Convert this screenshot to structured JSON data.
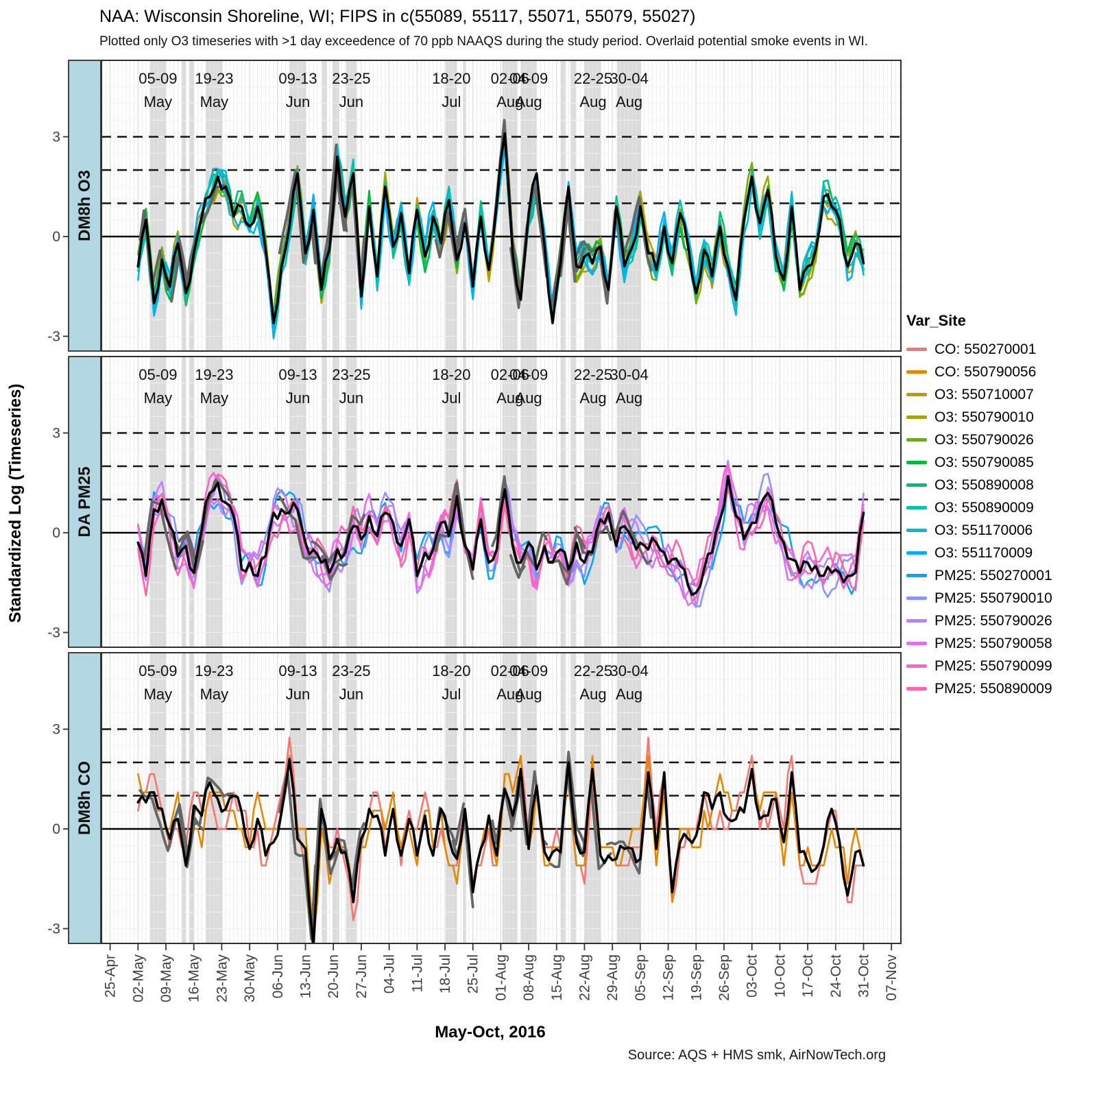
{
  "title": "NAA: Wisconsin Shoreline, WI; FIPS in c(55089, 55117, 55071, 55079, 55027)",
  "subtitle": "Plotted only O3 timeseries with >1 day exceedence of 70 ppb NAAQS during the study period. Overlaid potential smoke events in WI.",
  "caption": "Source: AQS + HMS smk, AirNowTech.org",
  "x_axis": {
    "title": "May-Oct, 2016",
    "ticks": [
      {
        "label": "25-Apr",
        "day": -7
      },
      {
        "label": "02-May",
        "day": 0
      },
      {
        "label": "09-May",
        "day": 7
      },
      {
        "label": "16-May",
        "day": 14
      },
      {
        "label": "23-May",
        "day": 21
      },
      {
        "label": "30-May",
        "day": 28
      },
      {
        "label": "06-Jun",
        "day": 35
      },
      {
        "label": "13-Jun",
        "day": 42
      },
      {
        "label": "20-Jun",
        "day": 49
      },
      {
        "label": "27-Jun",
        "day": 56
      },
      {
        "label": "04-Jul",
        "day": 63
      },
      {
        "label": "11-Jul",
        "day": 70
      },
      {
        "label": "18-Jul",
        "day": 77
      },
      {
        "label": "25-Jul",
        "day": 84
      },
      {
        "label": "01-Aug",
        "day": 91
      },
      {
        "label": "08-Aug",
        "day": 98
      },
      {
        "label": "15-Aug",
        "day": 105
      },
      {
        "label": "22-Aug",
        "day": 112
      },
      {
        "label": "29-Aug",
        "day": 119
      },
      {
        "label": "05-Sep",
        "day": 126
      },
      {
        "label": "12-Sep",
        "day": 133
      },
      {
        "label": "19-Sep",
        "day": 140
      },
      {
        "label": "26-Sep",
        "day": 147
      },
      {
        "label": "03-Oct",
        "day": 154
      },
      {
        "label": "10-Oct",
        "day": 161
      },
      {
        "label": "17-Oct",
        "day": 168
      },
      {
        "label": "24-Oct",
        "day": 175
      },
      {
        "label": "31-Oct",
        "day": 182
      },
      {
        "label": "07-Nov",
        "day": 189
      }
    ]
  },
  "y_axis": {
    "title": "Standardized Log (Timeseries)",
    "tick_labels": [
      "3",
      "0",
      "-3"
    ],
    "tick_values": [
      3,
      0,
      -3
    ],
    "dashed_reference_lines": [
      1,
      2,
      3
    ],
    "zero_line": 0
  },
  "legend": {
    "title": "Var_Site",
    "items": [
      {
        "label": "CO: 550270001",
        "color": "#F8766D"
      },
      {
        "label": "CO: 550790056",
        "color": "#E58700"
      },
      {
        "label": "O3: 550710007",
        "color": "#C99800"
      },
      {
        "label": "O3: 550790010",
        "color": "#A3A500"
      },
      {
        "label": "O3: 550790026",
        "color": "#6BB100"
      },
      {
        "label": "O3: 550790085",
        "color": "#00BA38"
      },
      {
        "label": "O3: 550890008",
        "color": "#00BF7D"
      },
      {
        "label": "O3: 550890009",
        "color": "#00C0AF"
      },
      {
        "label": "O3: 551170006",
        "color": "#00BCD8"
      },
      {
        "label": "O3: 551170009",
        "color": "#00B0F6"
      },
      {
        "label": "PM25: 550270001",
        "color": "#00A6FF"
      },
      {
        "label": "PM25: 550790010",
        "color": "#8B93FF"
      },
      {
        "label": "PM25: 550790026",
        "color": "#BD80FF"
      },
      {
        "label": "PM25: 550790058",
        "color": "#E76BF3"
      },
      {
        "label": "PM25: 550790099",
        "color": "#FC61D5"
      },
      {
        "label": "PM25: 550890009",
        "color": "#FF63A8"
      }
    ]
  },
  "colors": {
    "strip_fill": "#B3D7E2",
    "panel_border": "#2F2F2F",
    "smoke_band": "#BEBEBE",
    "mean_line_black": "#000000",
    "smoke_mean_gray": "#666666",
    "tick_text": "#404040"
  },
  "chart_data": {
    "type": "line",
    "x_unit": "day index, 0 = 02-May-2016, 182 = 31-Oct-2016",
    "ylim": [
      -3.44,
      5.3
    ],
    "day_step": 2,
    "smoke_events": [
      {
        "start": 3,
        "end": 7,
        "label": "05-09 May"
      },
      {
        "start": 10.9,
        "end": 12.0,
        "label": ""
      },
      {
        "start": 12.8,
        "end": 13.9,
        "label": ""
      },
      {
        "start": 17,
        "end": 21.2,
        "label": "19-23 May"
      },
      {
        "start": 38,
        "end": 42.2,
        "label": "09-13 Jun"
      },
      {
        "start": 46.2,
        "end": 47.4,
        "label": ""
      },
      {
        "start": 48.8,
        "end": 50.5,
        "label": ""
      },
      {
        "start": 52.2,
        "end": 54.8,
        "label": "23-25 Jun"
      },
      {
        "start": 77.2,
        "end": 80.0,
        "label": "18-20 Jul"
      },
      {
        "start": 81.5,
        "end": 82.3,
        "label": ""
      },
      {
        "start": 91.4,
        "end": 95.2,
        "label": "02-06 Aug"
      },
      {
        "start": 96,
        "end": 100,
        "label": "04-09 Aug"
      },
      {
        "start": 106.1,
        "end": 107.3,
        "label": ""
      },
      {
        "start": 108.5,
        "end": 109.8,
        "label": ""
      },
      {
        "start": 112.1,
        "end": 116.2,
        "label": "22-25 Aug"
      },
      {
        "start": 120.2,
        "end": 126.2,
        "label": "30-04 Aug"
      }
    ],
    "panels": [
      {
        "strip": "DM8h O3",
        "sites": [
          "O3: 550710007",
          "O3: 550790010",
          "O3: 550790026",
          "O3: 550790085",
          "O3: 550890008",
          "O3: 550890009",
          "O3: 551170006",
          "O3: 551170009"
        ],
        "site_colors": [
          "#C99800",
          "#A3A500",
          "#6BB100",
          "#00BA38",
          "#00BF7D",
          "#00C0AF",
          "#00BCD8",
          "#00B0F6"
        ],
        "jitter_amp": 0.3,
        "quantize": 0,
        "mean_black": [
          -0.9,
          0.5,
          -2.0,
          -0.7,
          -1.5,
          -0.2,
          -1.7,
          -0.5,
          0.6,
          1.2,
          1.8,
          1.5,
          0.6,
          0.9,
          0.3,
          0.9,
          -0.4,
          -2.6,
          -0.9,
          0.3,
          1.9,
          -0.5,
          0.8,
          -1.6,
          -0.4,
          2.4,
          0.6,
          1.9,
          -1.8,
          0.9,
          -1.2,
          1.5,
          -0.3,
          0.7,
          -1.1,
          0.8,
          -0.6,
          0.6,
          -0.2,
          1.1,
          -0.7,
          0.4,
          -1.5,
          0.6,
          -1.0,
          1.0,
          3.1,
          -0.5,
          -1.9,
          0.7,
          1.9,
          -0.3,
          -2.6,
          -0.8,
          1.5,
          -0.9,
          -0.6,
          -0.8,
          -0.3,
          -1.6,
          0.9,
          -0.9,
          -0.3,
          0.9,
          -0.5,
          -1.0,
          0.3,
          -0.8,
          0.7,
          -0.3,
          -1.7,
          -0.4,
          -1.2,
          0.3,
          -0.9,
          -1.9,
          0.5,
          1.8,
          0.4,
          1.4,
          -0.6,
          -1.3,
          0.9,
          -1.6,
          -0.9,
          -0.4,
          1.2,
          0.9,
          0.5,
          -0.9,
          -0.2,
          -0.8
        ]
      },
      {
        "strip": "DA PM25",
        "sites": [
          "PM25: 550270001",
          "PM25: 550790010",
          "PM25: 550790026",
          "PM25: 550790058",
          "PM25: 550790099",
          "PM25: 550890009"
        ],
        "site_colors": [
          "#00A6FF",
          "#8B93FF",
          "#BD80FF",
          "#E76BF3",
          "#FC61D5",
          "#FF63A8"
        ],
        "jitter_amp": 0.42,
        "quantize": 0,
        "mean_black": [
          -0.3,
          -1.3,
          0.7,
          1.0,
          0.2,
          -0.7,
          -0.4,
          -1.2,
          0.1,
          1.2,
          1.5,
          0.9,
          0.5,
          -1.1,
          -0.9,
          -1.3,
          -0.7,
          0.6,
          0.7,
          0.6,
          0.7,
          -0.3,
          -0.5,
          -0.9,
          -1.2,
          -0.5,
          -0.6,
          0.2,
          -0.2,
          0.5,
          -0.1,
          0.6,
          0.3,
          -0.4,
          0.4,
          -1.3,
          -0.6,
          -0.5,
          0.3,
          -0.1,
          1.1,
          -0.4,
          -1.1,
          0.4,
          -0.9,
          -0.5,
          1.3,
          -0.4,
          -0.9,
          -0.3,
          -1.1,
          -0.4,
          -0.9,
          -0.5,
          -1.1,
          -0.3,
          -0.9,
          -0.6,
          0.4,
          0.6,
          -0.4,
          0.2,
          -0.2,
          -0.3,
          -0.5,
          -0.3,
          -0.6,
          -0.8,
          -1.0,
          -1.6,
          -1.8,
          -1.1,
          -0.6,
          0.4,
          1.7,
          0.5,
          -0.2,
          0.3,
          0.8,
          1.2,
          0.3,
          -0.3,
          -0.8,
          -1.2,
          -0.9,
          -1.0,
          -1.3,
          -1.2,
          -1.2,
          -1.3,
          -1.2,
          0.6
        ]
      },
      {
        "strip": "DM8h CO",
        "sites": [
          "CO: 550270001",
          "CO: 550790056"
        ],
        "site_colors": [
          "#F8766D",
          "#E58700"
        ],
        "jitter_amp": 0.5,
        "quantize": 0.55,
        "mean_black": [
          0.8,
          0.8,
          1.1,
          0.6,
          -0.3,
          0.3,
          -1.1,
          0.7,
          0.4,
          1.4,
          0.9,
          0.6,
          1.0,
          0.5,
          -0.6,
          0.3,
          -0.8,
          -0.4,
          0.5,
          2.1,
          -0.3,
          -0.6,
          -3.5,
          0.6,
          -0.9,
          -0.3,
          -0.7,
          -2.2,
          -0.3,
          0.6,
          0.4,
          -0.8,
          0.6,
          -0.8,
          0.3,
          -0.8,
          0.4,
          -0.8,
          0.6,
          -0.3,
          -0.9,
          0.6,
          -1.9,
          -0.6,
          0.4,
          -0.8,
          1.2,
          0.4,
          1.8,
          -0.6,
          1.3,
          -0.7,
          -0.7,
          -0.7,
          2.0,
          -0.4,
          -0.7,
          1.8,
          -0.8,
          -0.8,
          -0.9,
          -0.6,
          -0.6,
          -0.9,
          1.7,
          -0.6,
          1.7,
          -1.9,
          -0.4,
          -0.3,
          -0.2,
          1.1,
          0.6,
          1.1,
          0.3,
          0.3,
          0.5,
          1.8,
          0.3,
          0.4,
          0.9,
          -0.4,
          1.7,
          -0.7,
          -1.0,
          -1.2,
          -0.5,
          0.6,
          -0.4,
          -2.0,
          -0.7,
          -1.1
        ]
      }
    ]
  }
}
